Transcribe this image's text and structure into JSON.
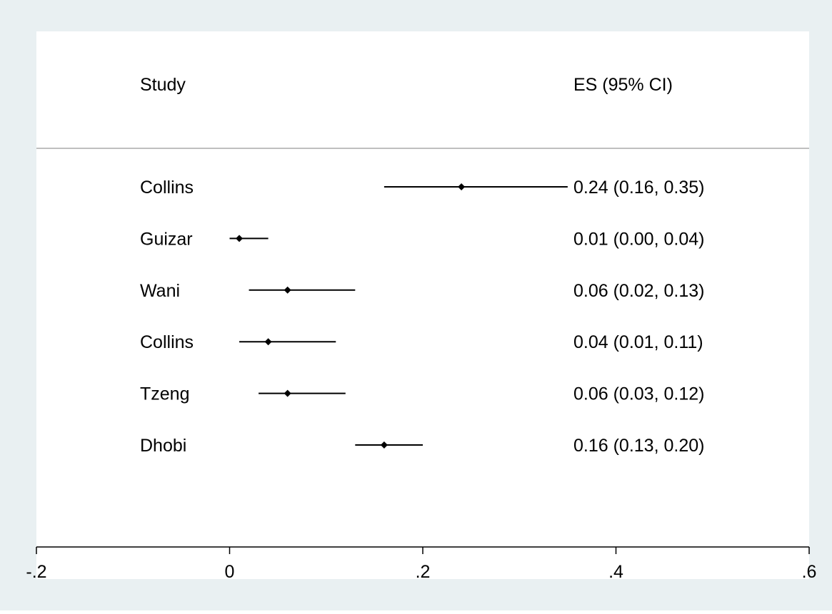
{
  "colors": {
    "outer_background": "#e9f0f2",
    "plot_background": "#ffffff",
    "line": "#000000",
    "separator": "#aaaaaa"
  },
  "chart_data": {
    "type": "forest",
    "headers": {
      "study": "Study",
      "es": "ES (95% CI)"
    },
    "xlim": [
      -0.2,
      0.6
    ],
    "x_ticks": [
      {
        "value": -0.2,
        "label": "-.2"
      },
      {
        "value": 0,
        "label": "0"
      },
      {
        "value": 0.2,
        "label": ".2"
      },
      {
        "value": 0.4,
        "label": ".4"
      },
      {
        "value": 0.6,
        "label": ".6"
      }
    ],
    "studies": [
      {
        "name": "Collins",
        "es": 0.24,
        "lo": 0.16,
        "hi": 0.35,
        "label": "0.24 (0.16, 0.35)"
      },
      {
        "name": "Guizar",
        "es": 0.01,
        "lo": 0.0,
        "hi": 0.04,
        "label": "0.01 (0.00, 0.04)"
      },
      {
        "name": "Wani",
        "es": 0.06,
        "lo": 0.02,
        "hi": 0.13,
        "label": "0.06 (0.02, 0.13)"
      },
      {
        "name": "Collins",
        "es": 0.04,
        "lo": 0.01,
        "hi": 0.11,
        "label": "0.04 (0.01, 0.11)"
      },
      {
        "name": "Tzeng",
        "es": 0.06,
        "lo": 0.03,
        "hi": 0.12,
        "label": "0.06 (0.03, 0.12)"
      },
      {
        "name": "Dhobi",
        "es": 0.16,
        "lo": 0.13,
        "hi": 0.2,
        "label": "0.16 (0.13, 0.20)"
      }
    ]
  }
}
